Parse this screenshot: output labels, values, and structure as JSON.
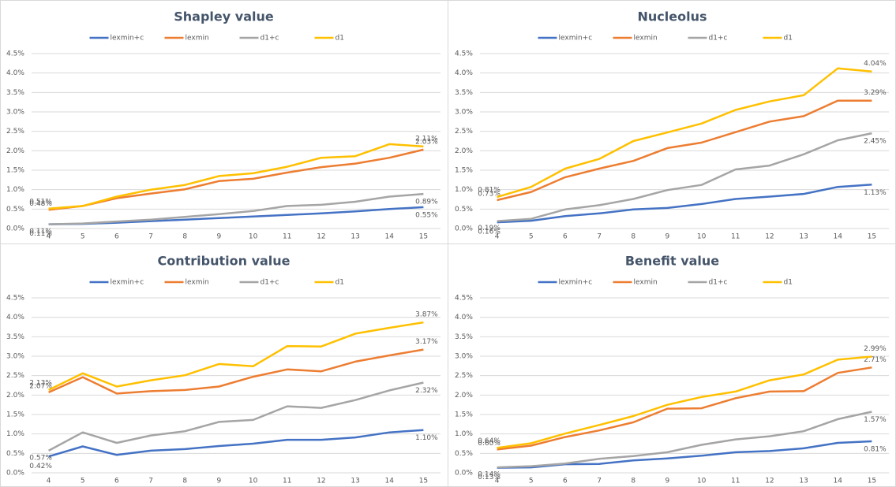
{
  "chart_data": [
    {
      "type": "line",
      "title": "Shapley value",
      "categories": [
        4,
        5,
        6,
        7,
        8,
        9,
        10,
        11,
        12,
        13,
        14,
        15
      ],
      "ylim": [
        0,
        4.5
      ],
      "yticks": [
        {
          "value": 0,
          "label": "0.0%"
        },
        {
          "value": 0.5,
          "label": "0.5%"
        },
        {
          "value": 1,
          "label": "1.0%"
        },
        {
          "value": 1.5,
          "label": "1.5%"
        },
        {
          "value": 2,
          "label": "2.0%"
        },
        {
          "value": 2.5,
          "label": "2.5%"
        },
        {
          "value": 3,
          "label": "3.0%"
        },
        {
          "value": 3.5,
          "label": "3.5%"
        },
        {
          "value": 4,
          "label": "4.0%"
        },
        {
          "value": 4.5,
          "label": "4.5%"
        }
      ],
      "grid": true,
      "legend": "top",
      "series": [
        {
          "name": "lexmin+c",
          "color": "#4472c4",
          "values": [
            0.11,
            0.12,
            0.15,
            0.19,
            0.23,
            0.27,
            0.31,
            0.35,
            0.39,
            0.44,
            0.5,
            0.55
          ],
          "value_labels": [
            "0.11%",
            null,
            null,
            null,
            null,
            null,
            null,
            null,
            null,
            null,
            null,
            "0.55%"
          ]
        },
        {
          "name": "lexmin",
          "color": "#ed7d31",
          "values": [
            0.48,
            0.58,
            0.78,
            0.9,
            1.01,
            1.22,
            1.28,
            1.44,
            1.58,
            1.67,
            1.82,
            2.03
          ],
          "value_labels": [
            "0.48%",
            null,
            null,
            null,
            null,
            null,
            null,
            null,
            null,
            null,
            null,
            "2.03%"
          ]
        },
        {
          "name": "d1+c",
          "color": "#a5a5a5",
          "values": [
            0.11,
            0.13,
            0.18,
            0.23,
            0.3,
            0.37,
            0.45,
            0.58,
            0.61,
            0.69,
            0.82,
            0.89
          ],
          "value_labels": [
            "0.11%",
            null,
            null,
            null,
            null,
            null,
            null,
            null,
            null,
            null,
            null,
            "0.89%"
          ]
        },
        {
          "name": "d1",
          "color": "#ffc000",
          "values": [
            0.51,
            0.58,
            0.82,
            1.0,
            1.12,
            1.35,
            1.42,
            1.59,
            1.82,
            1.86,
            2.17,
            2.11
          ],
          "value_labels": [
            "0.51%",
            null,
            null,
            null,
            null,
            null,
            null,
            null,
            null,
            null,
            null,
            "2.11%"
          ]
        }
      ]
    },
    {
      "type": "line",
      "title": "Nucleolus",
      "categories": [
        4,
        5,
        6,
        7,
        8,
        9,
        10,
        11,
        12,
        13,
        14,
        15
      ],
      "ylim": [
        0,
        4.5
      ],
      "yticks": [
        {
          "value": 0,
          "label": "0.0%"
        },
        {
          "value": 0.5,
          "label": "0.5%"
        },
        {
          "value": 1,
          "label": "1.0%"
        },
        {
          "value": 1.5,
          "label": "1.5%"
        },
        {
          "value": 2,
          "label": "2.0%"
        },
        {
          "value": 2.5,
          "label": "2.5%"
        },
        {
          "value": 3,
          "label": "3.0%"
        },
        {
          "value": 3.5,
          "label": "3.5%"
        },
        {
          "value": 4,
          "label": "4.0%"
        },
        {
          "value": 4.5,
          "label": "4.5%"
        }
      ],
      "grid": true,
      "legend": "top",
      "series": [
        {
          "name": "lexmin+c",
          "color": "#4472c4",
          "values": [
            0.16,
            0.2,
            0.32,
            0.39,
            0.49,
            0.53,
            0.63,
            0.76,
            0.82,
            0.89,
            1.07,
            1.13
          ],
          "value_labels": [
            "0.16%",
            null,
            null,
            null,
            null,
            null,
            null,
            null,
            null,
            null,
            null,
            "1.13%"
          ]
        },
        {
          "name": "lexmin",
          "color": "#ed7d31",
          "values": [
            0.73,
            0.94,
            1.32,
            1.54,
            1.74,
            2.07,
            2.21,
            2.48,
            2.75,
            2.89,
            3.29,
            3.29
          ],
          "value_labels": [
            "0.73%",
            null,
            null,
            null,
            null,
            null,
            null,
            null,
            null,
            null,
            null,
            "3.29%"
          ]
        },
        {
          "name": "d1+c",
          "color": "#a5a5a5",
          "values": [
            0.19,
            0.25,
            0.49,
            0.6,
            0.76,
            0.99,
            1.12,
            1.52,
            1.62,
            1.91,
            2.27,
            2.45
          ],
          "value_labels": [
            "0.19%",
            null,
            null,
            null,
            null,
            null,
            null,
            null,
            null,
            null,
            null,
            "2.45%"
          ]
        },
        {
          "name": "d1",
          "color": "#ffc000",
          "values": [
            0.81,
            1.07,
            1.54,
            1.79,
            2.25,
            2.47,
            2.7,
            3.05,
            3.27,
            3.43,
            4.12,
            4.04
          ],
          "value_labels": [
            "0.81%",
            null,
            null,
            null,
            null,
            null,
            null,
            null,
            null,
            null,
            null,
            "4.04%"
          ]
        }
      ]
    },
    {
      "type": "line",
      "title": "Contribution value",
      "categories": [
        4,
        5,
        6,
        7,
        8,
        9,
        10,
        11,
        12,
        13,
        14,
        15
      ],
      "ylim": [
        0,
        4.5
      ],
      "yticks": [
        {
          "value": 0,
          "label": "0.0%"
        },
        {
          "value": 0.5,
          "label": "0.5%"
        },
        {
          "value": 1,
          "label": "1.0%"
        },
        {
          "value": 1.5,
          "label": "1.5%"
        },
        {
          "value": 2,
          "label": "2.0%"
        },
        {
          "value": 2.5,
          "label": "2.5%"
        },
        {
          "value": 3,
          "label": "3.0%"
        },
        {
          "value": 3.5,
          "label": "3.5%"
        },
        {
          "value": 4,
          "label": "4.0%"
        },
        {
          "value": 4.5,
          "label": "4.5%"
        }
      ],
      "grid": true,
      "legend": "top",
      "series": [
        {
          "name": "lexmin+c",
          "color": "#4472c4",
          "values": [
            0.42,
            0.68,
            0.46,
            0.57,
            0.61,
            0.69,
            0.75,
            0.85,
            0.85,
            0.91,
            1.04,
            1.1
          ],
          "value_labels": [
            "0.42%",
            null,
            null,
            null,
            null,
            null,
            null,
            null,
            null,
            null,
            null,
            "1.10%"
          ]
        },
        {
          "name": "lexmin",
          "color": "#ed7d31",
          "values": [
            2.07,
            2.46,
            2.04,
            2.1,
            2.13,
            2.22,
            2.47,
            2.66,
            2.61,
            2.86,
            3.02,
            3.17
          ],
          "value_labels": [
            "2.07%",
            null,
            null,
            null,
            null,
            null,
            null,
            null,
            null,
            null,
            null,
            "3.17%"
          ]
        },
        {
          "name": "d1+c",
          "color": "#a5a5a5",
          "values": [
            0.57,
            1.04,
            0.77,
            0.96,
            1.07,
            1.31,
            1.36,
            1.71,
            1.67,
            1.87,
            2.12,
            2.32
          ],
          "value_labels": [
            "0.57%",
            null,
            null,
            null,
            null,
            null,
            null,
            null,
            null,
            null,
            null,
            "2.32%"
          ]
        },
        {
          "name": "d1",
          "color": "#ffc000",
          "values": [
            2.13,
            2.56,
            2.22,
            2.38,
            2.51,
            2.8,
            2.74,
            3.26,
            3.25,
            3.58,
            3.73,
            3.87
          ],
          "value_labels": [
            "2.13%",
            null,
            null,
            null,
            null,
            null,
            null,
            null,
            null,
            null,
            null,
            "3.87%"
          ]
        }
      ]
    },
    {
      "type": "line",
      "title": "Benefit value",
      "categories": [
        4,
        5,
        6,
        7,
        8,
        9,
        10,
        11,
        12,
        13,
        14,
        15
      ],
      "ylim": [
        0,
        4.5
      ],
      "yticks": [
        {
          "value": 0,
          "label": "0.0%"
        },
        {
          "value": 0.5,
          "label": "0.5%"
        },
        {
          "value": 1,
          "label": "1.0%"
        },
        {
          "value": 1.5,
          "label": "1.5%"
        },
        {
          "value": 2,
          "label": "2.0%"
        },
        {
          "value": 2.5,
          "label": "2.5%"
        },
        {
          "value": 3,
          "label": "3.0%"
        },
        {
          "value": 3.5,
          "label": "3.5%"
        },
        {
          "value": 4,
          "label": "4.0%"
        },
        {
          "value": 4.5,
          "label": "4.5%"
        }
      ],
      "grid": true,
      "legend": "top",
      "series": [
        {
          "name": "lexmin+c",
          "color": "#4472c4",
          "values": [
            0.13,
            0.14,
            0.22,
            0.23,
            0.32,
            0.37,
            0.44,
            0.53,
            0.56,
            0.63,
            0.77,
            0.81
          ],
          "value_labels": [
            "0.13%",
            null,
            null,
            null,
            null,
            null,
            null,
            null,
            null,
            null,
            null,
            "0.81%"
          ]
        },
        {
          "name": "lexmin",
          "color": "#ed7d31",
          "values": [
            0.6,
            0.7,
            0.92,
            1.09,
            1.3,
            1.65,
            1.66,
            1.92,
            2.09,
            2.1,
            2.57,
            2.71
          ],
          "value_labels": [
            "0.60%",
            null,
            null,
            null,
            null,
            null,
            null,
            null,
            null,
            null,
            null,
            "2.71%"
          ]
        },
        {
          "name": "d1+c",
          "color": "#a5a5a5",
          "values": [
            0.14,
            0.17,
            0.24,
            0.36,
            0.43,
            0.53,
            0.72,
            0.86,
            0.94,
            1.07,
            1.38,
            1.57
          ],
          "value_labels": [
            "0.14%",
            null,
            null,
            null,
            null,
            null,
            null,
            null,
            null,
            null,
            null,
            "1.57%"
          ]
        },
        {
          "name": "d1",
          "color": "#ffc000",
          "values": [
            0.64,
            0.76,
            1.01,
            1.23,
            1.46,
            1.75,
            1.95,
            2.09,
            2.38,
            2.53,
            2.91,
            2.99
          ],
          "value_labels": [
            "0.64%",
            null,
            null,
            null,
            null,
            null,
            null,
            null,
            null,
            null,
            null,
            "2.99%"
          ]
        }
      ]
    }
  ]
}
